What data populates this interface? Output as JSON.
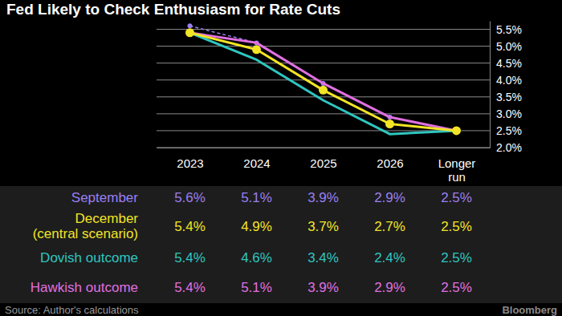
{
  "chart_data": {
    "type": "line",
    "title": "Fed Likely to Check Enthusiasm for Rate Cuts",
    "categories": [
      "2023",
      "2024",
      "2025",
      "2026",
      "Longer run"
    ],
    "series": [
      {
        "name": "September",
        "color": "#9b7ff2",
        "values": [
          5.6,
          5.1,
          3.9,
          2.9,
          2.5
        ],
        "value_labels": [
          "5.6%",
          "5.1%",
          "3.9%",
          "2.9%",
          "2.5%"
        ],
        "line_style": "dashed",
        "marker": "circle"
      },
      {
        "name": "December (central scenario)",
        "color": "#f2e526",
        "values": [
          5.4,
          4.9,
          3.7,
          2.7,
          2.5
        ],
        "value_labels": [
          "5.4%",
          "4.9%",
          "3.7%",
          "2.7%",
          "2.5%"
        ],
        "line_style": "solid",
        "marker": "circle"
      },
      {
        "name": "Dovish outcome",
        "color": "#2fc6c0",
        "values": [
          5.4,
          4.6,
          3.4,
          2.4,
          2.5
        ],
        "value_labels": [
          "5.4%",
          "4.6%",
          "3.4%",
          "2.4%",
          "2.5%"
        ],
        "line_style": "solid",
        "marker": "none"
      },
      {
        "name": "Hawkish outcome",
        "color": "#e070e0",
        "values": [
          5.4,
          5.1,
          3.9,
          2.9,
          2.5
        ],
        "value_labels": [
          "5.4%",
          "5.1%",
          "3.9%",
          "2.9%",
          "2.5%"
        ],
        "line_style": "solid",
        "marker": "none"
      }
    ],
    "ylim": [
      2.0,
      5.75
    ],
    "yticks": [
      {
        "value": 2.0,
        "label": "2.0%"
      },
      {
        "value": 2.5,
        "label": "2.5%"
      },
      {
        "value": 3.0,
        "label": "3.0%"
      },
      {
        "value": 3.5,
        "label": "3.5%"
      },
      {
        "value": 4.0,
        "label": "4.0%"
      },
      {
        "value": 4.5,
        "label": "4.5%"
      },
      {
        "value": 5.0,
        "label": "5.0%"
      },
      {
        "value": 5.5,
        "label": "5.5%"
      }
    ],
    "grid": true,
    "source": "Source: Author's calculations",
    "credit": "Bloomberg"
  }
}
